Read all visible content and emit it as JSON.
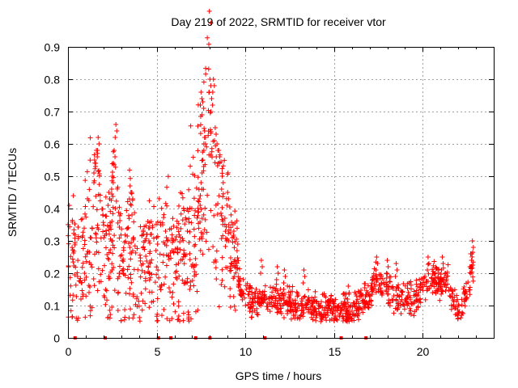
{
  "chart_data": {
    "type": "scatter",
    "title": "Day 219 of 2022, SRMTID for receiver vtor",
    "xlabel": "GPS time / hours",
    "ylabel": "SRMTID / TECUs",
    "xlim": [
      0,
      24
    ],
    "ylim": [
      0,
      0.9
    ],
    "xticks": [
      "0",
      "5",
      "10",
      "15",
      "20"
    ],
    "yticks": [
      "0",
      "0.1",
      "0.2",
      "0.3",
      "0.4",
      "0.5",
      "0.6",
      "0.7",
      "0.8",
      "0.9"
    ],
    "grid": true,
    "marker": "+",
    "color": "#ff0000",
    "trend": [
      [
        0.0,
        0.21
      ],
      [
        0.3,
        0.2
      ],
      [
        0.6,
        0.18
      ],
      [
        0.8,
        0.24
      ],
      [
        1.0,
        0.3
      ],
      [
        1.3,
        0.31
      ],
      [
        1.6,
        0.33
      ],
      [
        1.8,
        0.36
      ],
      [
        2.0,
        0.28
      ],
      [
        2.2,
        0.24
      ],
      [
        2.5,
        0.28
      ],
      [
        2.7,
        0.36
      ],
      [
        2.9,
        0.28
      ],
      [
        3.1,
        0.2
      ],
      [
        3.4,
        0.25
      ],
      [
        3.6,
        0.3
      ],
      [
        3.8,
        0.22
      ],
      [
        4.0,
        0.18
      ],
      [
        4.3,
        0.2
      ],
      [
        4.5,
        0.22
      ],
      [
        4.8,
        0.18
      ],
      [
        5.0,
        0.2
      ],
      [
        5.3,
        0.22
      ],
      [
        5.6,
        0.25
      ],
      [
        5.8,
        0.22
      ],
      [
        6.0,
        0.18
      ],
      [
        6.3,
        0.22
      ],
      [
        6.6,
        0.28
      ],
      [
        6.9,
        0.3
      ],
      [
        7.2,
        0.35
      ],
      [
        7.5,
        0.4
      ],
      [
        7.7,
        0.5
      ],
      [
        7.9,
        0.58
      ],
      [
        8.1,
        0.5
      ],
      [
        8.3,
        0.42
      ],
      [
        8.5,
        0.38
      ],
      [
        8.7,
        0.4
      ],
      [
        8.9,
        0.36
      ],
      [
        9.2,
        0.3
      ],
      [
        9.5,
        0.22
      ],
      [
        9.8,
        0.13
      ],
      [
        10.2,
        0.12
      ],
      [
        10.6,
        0.1
      ],
      [
        11.0,
        0.11
      ],
      [
        11.4,
        0.1
      ],
      [
        11.8,
        0.12
      ],
      [
        12.2,
        0.1
      ],
      [
        12.6,
        0.11
      ],
      [
        13.0,
        0.09
      ],
      [
        13.5,
        0.1
      ],
      [
        14.0,
        0.09
      ],
      [
        14.5,
        0.08
      ],
      [
        15.0,
        0.09
      ],
      [
        15.5,
        0.08
      ],
      [
        16.0,
        0.08
      ],
      [
        16.5,
        0.11
      ],
      [
        17.0,
        0.13
      ],
      [
        17.4,
        0.18
      ],
      [
        17.8,
        0.16
      ],
      [
        18.2,
        0.14
      ],
      [
        18.6,
        0.12
      ],
      [
        19.0,
        0.13
      ],
      [
        19.4,
        0.11
      ],
      [
        19.8,
        0.14
      ],
      [
        20.2,
        0.17
      ],
      [
        20.6,
        0.18
      ],
      [
        21.0,
        0.16
      ],
      [
        21.4,
        0.18
      ],
      [
        21.7,
        0.12
      ],
      [
        22.0,
        0.08
      ],
      [
        22.3,
        0.1
      ],
      [
        22.6,
        0.15
      ],
      [
        22.8,
        0.22
      ]
    ],
    "spikes": [
      [
        1.5,
        0.55
      ],
      [
        1.6,
        0.58
      ],
      [
        1.7,
        0.62
      ],
      [
        2.7,
        0.66
      ],
      [
        2.6,
        0.58
      ],
      [
        2.5,
        0.5
      ],
      [
        2.3,
        0.45
      ],
      [
        3.5,
        0.47
      ],
      [
        3.6,
        0.45
      ],
      [
        4.5,
        0.36
      ],
      [
        4.6,
        0.34
      ],
      [
        5.0,
        0.31
      ],
      [
        5.5,
        0.33
      ],
      [
        7.4,
        0.43
      ],
      [
        7.5,
        0.48
      ],
      [
        7.6,
        0.55
      ],
      [
        7.7,
        0.62
      ],
      [
        7.6,
        0.73
      ],
      [
        7.5,
        0.76
      ],
      [
        7.7,
        0.64
      ],
      [
        8.0,
        0.8
      ],
      [
        8.2,
        0.8
      ],
      [
        8.1,
        0.74
      ],
      [
        8.3,
        0.65
      ],
      [
        8.4,
        0.6
      ],
      [
        8.5,
        0.58
      ],
      [
        8.7,
        0.5
      ],
      [
        9.0,
        0.45
      ],
      [
        9.3,
        0.35
      ],
      [
        10.9,
        0.24
      ],
      [
        11.8,
        0.22
      ],
      [
        12.2,
        0.21
      ],
      [
        13.3,
        0.21
      ],
      [
        15.8,
        0.16
      ],
      [
        17.4,
        0.25
      ],
      [
        18.0,
        0.24
      ],
      [
        18.5,
        0.23
      ],
      [
        20.3,
        0.25
      ],
      [
        21.1,
        0.25
      ],
      [
        22.7,
        0.26
      ],
      [
        22.8,
        0.3
      ]
    ],
    "zero_markers_x": [
      0.4,
      2.1,
      5.1,
      5.8,
      7.2,
      8.0,
      11.1,
      15.4,
      16.8
    ]
  }
}
